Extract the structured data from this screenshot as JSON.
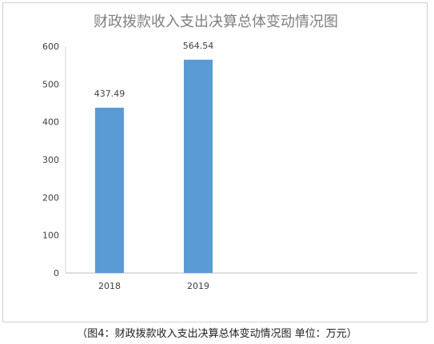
{
  "chart_data": {
    "type": "bar",
    "title": "财政拨款收入支出决算总体变动情况图",
    "categories": [
      "2018",
      "2019"
    ],
    "values": [
      437.49,
      564.54
    ],
    "data_labels": [
      "437.49",
      "564.54"
    ],
    "ylim": [
      0,
      600
    ],
    "yticks": [
      0,
      100,
      200,
      300,
      400,
      500,
      600
    ],
    "xlabel": "",
    "ylabel": "",
    "grid": false,
    "legend": "none",
    "bar_color": "#5b9bd5"
  },
  "caption": "（图4：财政拨款收入支出决算总体变动情况图 单位：万元）"
}
